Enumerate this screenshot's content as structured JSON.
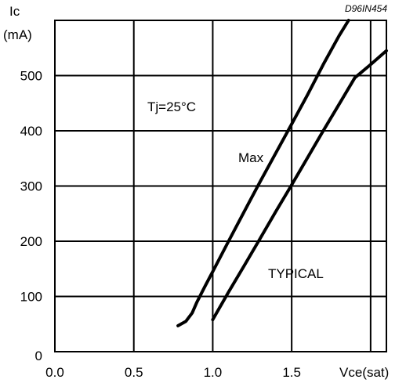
{
  "chart_data": {
    "type": "line",
    "ref_code": "D96IN454",
    "ylabel_line1": "Ic",
    "ylabel_line2": "(mA)",
    "xlabel": "Vce(sat)",
    "xlim": [
      0.0,
      2.1
    ],
    "ylim": [
      0,
      600
    ],
    "x_ticks": [
      0.0,
      0.5,
      1.0,
      1.5
    ],
    "x_tick_labels": [
      "0.0",
      "0.5",
      "1.0",
      "1.5"
    ],
    "y_ticks": [
      0,
      100,
      200,
      300,
      400,
      500
    ],
    "y_tick_labels": [
      "0",
      "100",
      "200",
      "300",
      "400",
      "500"
    ],
    "grid": true,
    "condition": "Tj=25°C",
    "series": [
      {
        "name": "Max",
        "x": [
          0.78,
          0.83,
          0.87,
          0.9,
          0.95,
          1.0,
          1.1,
          1.2,
          1.3,
          1.4,
          1.5,
          1.6,
          1.7,
          1.8,
          1.86
        ],
        "y": [
          47,
          55,
          70,
          90,
          118,
          145,
          200,
          254,
          308,
          360,
          412,
          465,
          520,
          572,
          600
        ]
      },
      {
        "name": "TYPICAL",
        "x": [
          1.0,
          1.1,
          1.2,
          1.3,
          1.4,
          1.5,
          1.6,
          1.7,
          1.8,
          1.9,
          2.0,
          2.1
        ],
        "y": [
          58,
          108,
          156,
          205,
          254,
          302,
          351,
          400,
          448,
          496,
          520,
          545
        ]
      }
    ]
  }
}
